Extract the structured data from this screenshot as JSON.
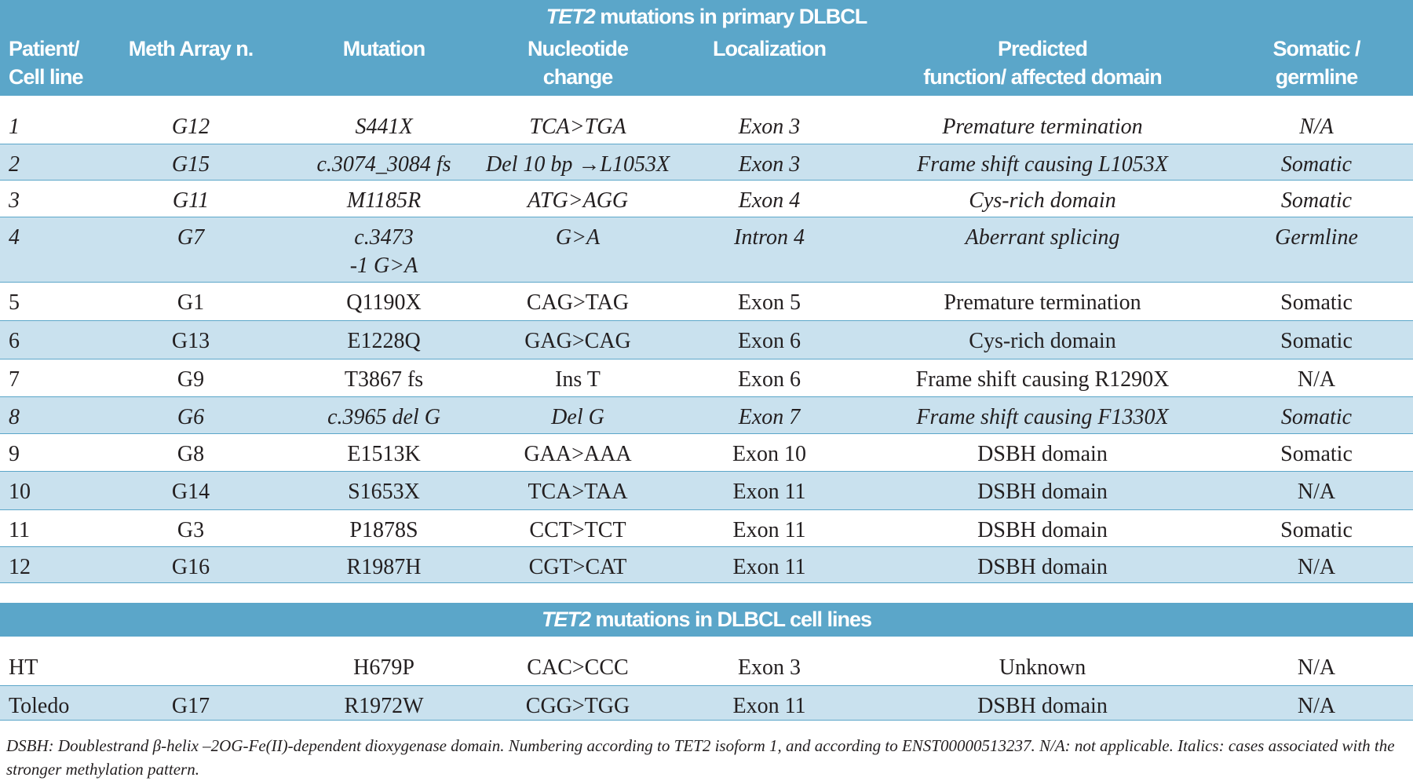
{
  "table": {
    "title_gene": "TET2",
    "title_rest": " mutations in primary DLBCL",
    "columns": [
      "Patient/\nCell line",
      "Meth Array n.",
      "Mutation",
      "Nucleotide\nchange",
      "Localization",
      "Predicted\nfunction/ affected domain",
      "Somatic /\ngermline"
    ],
    "rows": [
      {
        "cells": [
          "1",
          "G12",
          "S441X",
          "TCA>TGA",
          "Exon 3",
          "Premature termination",
          "N/A"
        ],
        "italic": true
      },
      {
        "cells": [
          "2",
          "G15",
          "c.3074_3084 fs",
          "Del 10 bp →L1053X",
          "Exon 3",
          "Frame shift causing L1053X",
          "Somatic"
        ],
        "italic": true
      },
      {
        "cells": [
          "3",
          "G11",
          "M1185R",
          "ATG>AGG",
          "Exon 4",
          "Cys-rich domain",
          "Somatic"
        ],
        "italic": true
      },
      {
        "cells": [
          "4",
          "G7",
          "c.3473\n-1 G>A",
          "G>A",
          "Intron 4",
          "Aberrant splicing",
          "Germline"
        ],
        "italic": true
      },
      {
        "cells": [
          "5",
          "G1",
          "Q1190X",
          "CAG>TAG",
          "Exon 5",
          "Premature termination",
          "Somatic"
        ],
        "italic": false
      },
      {
        "cells": [
          "6",
          "G13",
          "E1228Q",
          "GAG>CAG",
          "Exon 6",
          "Cys-rich domain",
          "Somatic"
        ],
        "italic": false
      },
      {
        "cells": [
          "7",
          "G9",
          "T3867 fs",
          "Ins T",
          "Exon 6",
          "Frame shift causing R1290X",
          "N/A"
        ],
        "italic": false
      },
      {
        "cells": [
          "8",
          "G6",
          "c.3965 del G",
          "Del G",
          "Exon 7",
          "Frame shift causing F1330X",
          "Somatic"
        ],
        "italic": true
      },
      {
        "cells": [
          "9",
          "G8",
          "E1513K",
          "GAA>AAA",
          "Exon 10",
          "DSBH domain",
          "Somatic"
        ],
        "italic": false
      },
      {
        "cells": [
          "10",
          "G14",
          "S1653X",
          "TCA>TAA",
          "Exon 11",
          "DSBH domain",
          "N/A"
        ],
        "italic": false
      },
      {
        "cells": [
          "11",
          "G3",
          "P1878S",
          "CCT>TCT",
          "Exon 11",
          "DSBH domain",
          "Somatic"
        ],
        "italic": false
      },
      {
        "cells": [
          "12",
          "G16",
          "R1987H",
          "CGT>CAT",
          "Exon 11",
          "DSBH domain",
          "N/A"
        ],
        "italic": false
      }
    ],
    "section2_gene": "TET2",
    "section2_rest": " mutations in DLBCL cell lines",
    "rows2": [
      {
        "cells": [
          "HT",
          "",
          "H679P",
          "CAC>CCC",
          "Exon 3",
          "Unknown",
          "N/A"
        ],
        "italic": false
      },
      {
        "cells": [
          "Toledo",
          "G17",
          "R1972W",
          "CGG>TGG",
          "Exon 11",
          "DSBH domain",
          "N/A"
        ],
        "italic": false
      }
    ],
    "footnote": "DSBH: Doublestrand β-helix –2OG-Fe(II)-dependent dioxygenase domain. Numbering according to TET2 isoform 1, and according to ENST00000513237. N/A: not applicable. Italics: cases associated with the stronger methylation pattern."
  },
  "colors": {
    "header": "#5ba6c9",
    "alt_row": "#c9e1ee"
  }
}
